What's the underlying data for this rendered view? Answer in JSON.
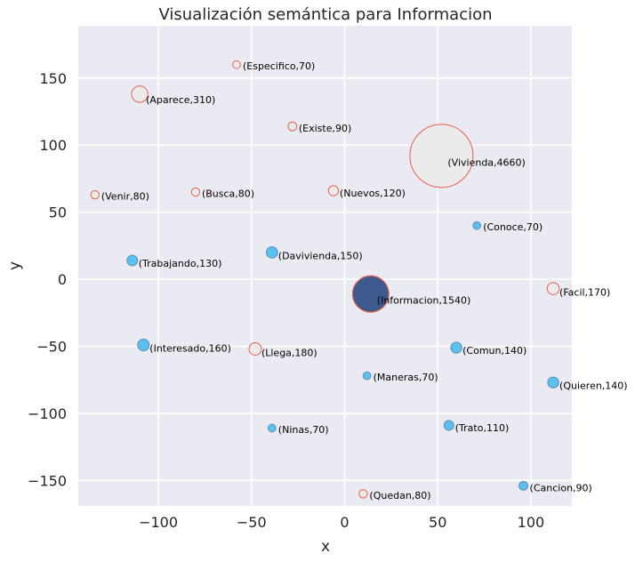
{
  "chart_data": {
    "type": "scatter",
    "title": "Visualización semántica para Informacion",
    "xlabel": "x",
    "ylabel": "y",
    "xlim": [
      -143,
      122
    ],
    "ylim": [
      -169,
      189
    ],
    "xticks": [
      -100,
      -50,
      0,
      50,
      100
    ],
    "yticks": [
      -150,
      -100,
      -50,
      0,
      50,
      100,
      150
    ],
    "xtick_labels": [
      "−100",
      "−50",
      "0",
      "50",
      "100"
    ],
    "ytick_labels": [
      "−150",
      "−100",
      "−50",
      "0",
      "50",
      "100",
      "150"
    ],
    "grid": true,
    "colors": {
      "background": "#eaeaf2",
      "grid": "#ffffff",
      "open_fill": "#ebebeb",
      "filled_point": "#5bc0f0",
      "highlight_point": "#3d5a8f",
      "marker_edge": "#e8604c"
    },
    "points": [
      {
        "word": "Especifico",
        "value": 70,
        "label": "(Especifico,70)",
        "x": -58,
        "y": 160,
        "style": "open"
      },
      {
        "word": "Aparece",
        "value": 310,
        "label": "(Aparece,310)",
        "x": -110,
        "y": 138,
        "style": "open"
      },
      {
        "word": "Existe",
        "value": 90,
        "label": "(Existe,90)",
        "x": -28,
        "y": 114,
        "style": "open"
      },
      {
        "word": "Vivienda",
        "value": 4660,
        "label": "(Vivienda,4660)",
        "x": 52,
        "y": 92,
        "style": "open"
      },
      {
        "word": "Venir",
        "value": 80,
        "label": "(Venir,80)",
        "x": -134,
        "y": 63,
        "style": "open"
      },
      {
        "word": "Busca",
        "value": 80,
        "label": "(Busca,80)",
        "x": -80,
        "y": 65,
        "style": "open"
      },
      {
        "word": "Nuevos",
        "value": 120,
        "label": "(Nuevos,120)",
        "x": -6,
        "y": 66,
        "style": "open"
      },
      {
        "word": "Conoce",
        "value": 70,
        "label": "(Conoce,70)",
        "x": 71,
        "y": 40,
        "style": "filled"
      },
      {
        "word": "Davivienda",
        "value": 150,
        "label": "(Davivienda,150)",
        "x": -39,
        "y": 20,
        "style": "filled"
      },
      {
        "word": "Trabajando",
        "value": 130,
        "label": "(Trabajando,130)",
        "x": -114,
        "y": 14,
        "style": "filled"
      },
      {
        "word": "Informacion",
        "value": 1540,
        "label": "(Informacion,1540)",
        "x": 14,
        "y": -11,
        "style": "highlight"
      },
      {
        "word": "Facil",
        "value": 170,
        "label": "(Facil,170)",
        "x": 112,
        "y": -7,
        "style": "open"
      },
      {
        "word": "Interesado",
        "value": 160,
        "label": "(Interesado,160)",
        "x": -108,
        "y": -49,
        "style": "filled"
      },
      {
        "word": "Llega",
        "value": 180,
        "label": "(Llega,180)",
        "x": -48,
        "y": -52,
        "style": "open"
      },
      {
        "word": "Comun",
        "value": 140,
        "label": "(Comun,140)",
        "x": 60,
        "y": -51,
        "style": "filled"
      },
      {
        "word": "Maneras",
        "value": 70,
        "label": "(Maneras,70)",
        "x": 12,
        "y": -72,
        "style": "filled"
      },
      {
        "word": "Quieren",
        "value": 140,
        "label": "(Quieren,140)",
        "x": 112,
        "y": -77,
        "style": "filled"
      },
      {
        "word": "Ninas",
        "value": 70,
        "label": "(Ninas,70)",
        "x": -39,
        "y": -111,
        "style": "filled"
      },
      {
        "word": "Trato",
        "value": 110,
        "label": "(Trato,110)",
        "x": 56,
        "y": -109,
        "style": "filled"
      },
      {
        "word": "Cancion",
        "value": 90,
        "label": "(Cancion,90)",
        "x": 96,
        "y": -154,
        "style": "filled"
      },
      {
        "word": "Quedan",
        "value": 80,
        "label": "(Quedan,80)",
        "x": 10,
        "y": -160,
        "style": "open"
      }
    ]
  }
}
